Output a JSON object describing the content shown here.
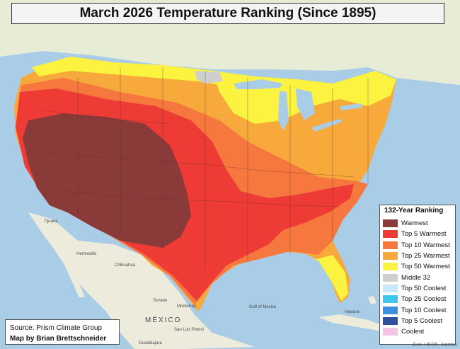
{
  "title": "March 2026 Temperature Ranking (Since 1895)",
  "source_line1": "Source: Prism Climate Group",
  "source_line2": "Map by Brian Brettschneider",
  "legend": {
    "title": "132-Year Ranking",
    "items": [
      {
        "label": "Warmest",
        "color": "#8b3a3a"
      },
      {
        "label": "Top 5 Warmest",
        "color": "#ef3b36"
      },
      {
        "label": "Top 10 Warmest",
        "color": "#f6783e"
      },
      {
        "label": "Top 25 Warmest",
        "color": "#f7a93b"
      },
      {
        "label": "Top 50 Warmest",
        "color": "#fbf340"
      },
      {
        "label": "Middle 32",
        "color": "#cfcfcf"
      },
      {
        "label": "Top 50 Coolest",
        "color": "#c9e8fb"
      },
      {
        "label": "Top 25 Coolest",
        "color": "#3fc6ee"
      },
      {
        "label": "Top 10 Coolest",
        "color": "#3f8fe0"
      },
      {
        "label": "Top 5 Coolest",
        "color": "#324f9c"
      },
      {
        "label": "Coolest",
        "color": "#f6c4e6"
      }
    ]
  },
  "map_labels": {
    "mexico": "MÉXICO",
    "gulf": "Gulf of Mexico",
    "monterrey": "Monterrey",
    "torreon": "Torreón",
    "san_luis": "San Luis Potosí",
    "guadalajara": "Guadalajara",
    "havana": "Havana",
    "hermosillo": "Hermosillo",
    "chihuahua": "Chihuahua",
    "tijuana": "Tijuana"
  },
  "attribution": "Esri, HERE, Garmin"
}
